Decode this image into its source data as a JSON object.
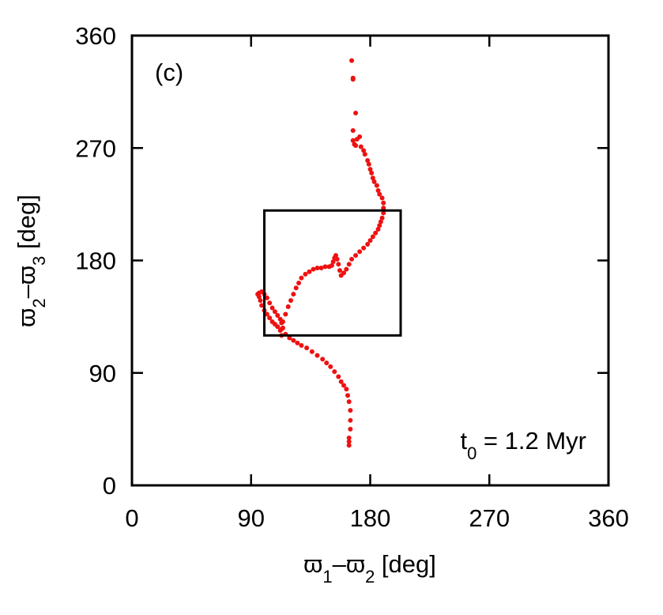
{
  "chart_data": {
    "type": "scatter",
    "title": "",
    "panel_label": "(c)",
    "annotation": {
      "main": "t",
      "sub": "0",
      "rest": " = 1.2 Myr"
    },
    "xlabel": {
      "sym1": "ϖ",
      "sub1": "1",
      "dash": "–",
      "sym2": "ϖ",
      "sub2": "2",
      "unit": " [deg]"
    },
    "ylabel": {
      "sym1": "ϖ",
      "sub1": "2",
      "dash": "–",
      "sym2": "ϖ",
      "sub2": "3",
      "unit": " [deg]"
    },
    "xlim": [
      0,
      360
    ],
    "ylim": [
      0,
      360
    ],
    "xticks": [
      0,
      90,
      180,
      270,
      360
    ],
    "yticks": [
      0,
      90,
      180,
      270,
      360
    ],
    "xtick_labels": [
      "0",
      "90",
      "180",
      "270",
      "360"
    ],
    "ytick_labels": [
      "0",
      "90",
      "180",
      "270",
      "360"
    ],
    "grid": false,
    "marker_color": "#ee1111",
    "box": {
      "x": [
        100,
        203
      ],
      "y": [
        120,
        220
      ]
    },
    "series": [
      {
        "points": [
          [
            166,
            340
          ],
          [
            167,
            326
          ],
          [
            167,
            325
          ],
          [
            169,
            298
          ],
          [
            167,
            284
          ],
          [
            167,
            276
          ],
          [
            168,
            273
          ],
          [
            169,
            272
          ],
          [
            170,
            277
          ],
          [
            172,
            279
          ],
          [
            173,
            271
          ],
          [
            175,
            268
          ],
          [
            176,
            265
          ],
          [
            178,
            260
          ],
          [
            179,
            257
          ],
          [
            180,
            253
          ],
          [
            181,
            250
          ],
          [
            182,
            246
          ],
          [
            183,
            243
          ],
          [
            185,
            240
          ],
          [
            186,
            236
          ],
          [
            187,
            233
          ],
          [
            189,
            230
          ],
          [
            190,
            226
          ],
          [
            190,
            222
          ],
          [
            190,
            218
          ],
          [
            189,
            214
          ],
          [
            188,
            211
          ],
          [
            187,
            208
          ],
          [
            186,
            205
          ],
          [
            184,
            202
          ],
          [
            182,
            199
          ],
          [
            180,
            196
          ],
          [
            178,
            193
          ],
          [
            175,
            190
          ],
          [
            172,
            187
          ],
          [
            169,
            184
          ],
          [
            166,
            181
          ],
          [
            164,
            177
          ],
          [
            162,
            173
          ],
          [
            160,
            170
          ],
          [
            158,
            168
          ],
          [
            157,
            172
          ],
          [
            156,
            177
          ],
          [
            155,
            181
          ],
          [
            154,
            184
          ],
          [
            153,
            182
          ],
          [
            152,
            179
          ],
          [
            151,
            176
          ],
          [
            149,
            175
          ],
          [
            146,
            175
          ],
          [
            143,
            174
          ],
          [
            140,
            174
          ],
          [
            137,
            173
          ],
          [
            134,
            171
          ],
          [
            131,
            169
          ],
          [
            128,
            166
          ],
          [
            126,
            162
          ],
          [
            124,
            158
          ],
          [
            122,
            153
          ],
          [
            120,
            148
          ],
          [
            118,
            143
          ],
          [
            116,
            137
          ],
          [
            114,
            131
          ],
          [
            113,
            125
          ],
          [
            113,
            120
          ],
          [
            112,
            124
          ],
          [
            110,
            127
          ],
          [
            108,
            129
          ],
          [
            106,
            131
          ],
          [
            104,
            134
          ],
          [
            102,
            137
          ],
          [
            100,
            140
          ],
          [
            98,
            144
          ],
          [
            97,
            148
          ],
          [
            96,
            151
          ],
          [
            95,
            153
          ],
          [
            96,
            154
          ],
          [
            98,
            155
          ],
          [
            100,
            153
          ],
          [
            102,
            150
          ],
          [
            104,
            146
          ],
          [
            106,
            142
          ],
          [
            108,
            139
          ],
          [
            110,
            136
          ],
          [
            112,
            133
          ],
          [
            113,
            130
          ],
          [
            114,
            126
          ],
          [
            116,
            121
          ],
          [
            119,
            118
          ],
          [
            122,
            116
          ],
          [
            125,
            114
          ],
          [
            128,
            112
          ],
          [
            132,
            110
          ],
          [
            136,
            107
          ],
          [
            140,
            104
          ],
          [
            144,
            101
          ],
          [
            147,
            98
          ],
          [
            150,
            95
          ],
          [
            153,
            91
          ],
          [
            156,
            87
          ],
          [
            158,
            83
          ],
          [
            160,
            80
          ],
          [
            162,
            77
          ],
          [
            163,
            72
          ],
          [
            164,
            67
          ],
          [
            165,
            60
          ],
          [
            165,
            52
          ],
          [
            165,
            45
          ],
          [
            164,
            38
          ],
          [
            164,
            35
          ],
          [
            164,
            32
          ]
        ]
      }
    ]
  }
}
